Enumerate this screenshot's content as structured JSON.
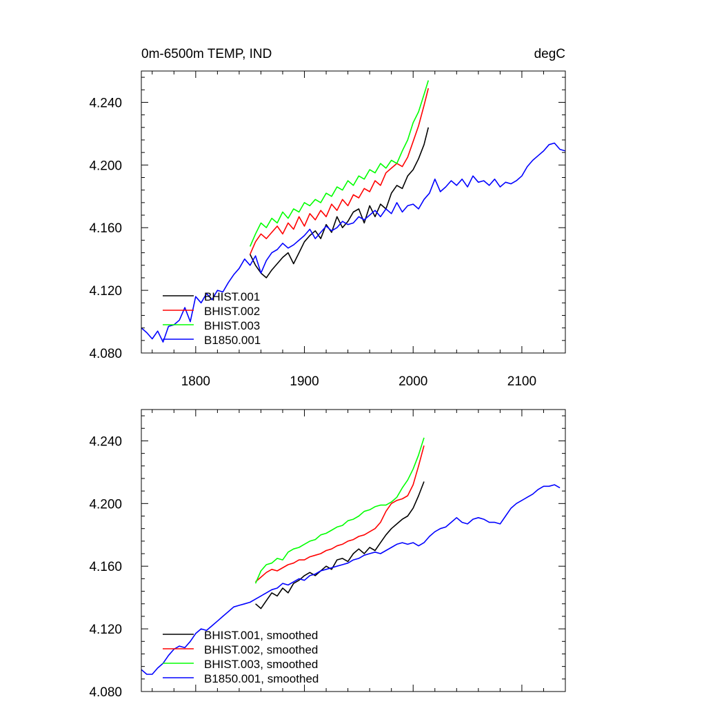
{
  "chart_data": [
    {
      "type": "line",
      "title": "0m-6500m TEMP, IND",
      "units": "degC",
      "xlabel": "",
      "ylabel": "",
      "xlim": [
        1750,
        2140
      ],
      "ylim": [
        4.08,
        4.26
      ],
      "yticks": [
        4.08,
        4.12,
        4.16,
        4.2,
        4.24
      ],
      "ytick_labels": [
        "4.080",
        "4.120",
        "4.160",
        "4.200",
        "4.240"
      ],
      "xticks": [
        1800,
        1900,
        2000,
        2100
      ],
      "xtick_labels": [
        "1800",
        "1900",
        "2000",
        "2100"
      ],
      "grid": false,
      "legend_position": "bottom-left",
      "series": [
        {
          "name": "BHIST.001",
          "color": "#000000",
          "x": [
            1850,
            1855,
            1860,
            1865,
            1870,
            1875,
            1880,
            1885,
            1890,
            1895,
            1900,
            1905,
            1910,
            1915,
            1920,
            1925,
            1930,
            1935,
            1940,
            1945,
            1950,
            1955,
            1960,
            1965,
            1970,
            1975,
            1980,
            1985,
            1990,
            1995,
            2000,
            2005,
            2010,
            2014
          ],
          "values": [
            4.143,
            4.136,
            4.131,
            4.128,
            4.133,
            4.137,
            4.141,
            4.144,
            4.137,
            4.144,
            4.151,
            4.155,
            4.158,
            4.153,
            4.162,
            4.157,
            4.167,
            4.16,
            4.164,
            4.17,
            4.172,
            4.163,
            4.174,
            4.167,
            4.175,
            4.172,
            4.182,
            4.187,
            4.185,
            4.193,
            4.197,
            4.204,
            4.213,
            4.224
          ]
        },
        {
          "name": "BHIST.002",
          "color": "#ff0000",
          "x": [
            1850,
            1855,
            1860,
            1865,
            1870,
            1875,
            1880,
            1885,
            1890,
            1895,
            1900,
            1905,
            1910,
            1915,
            1920,
            1925,
            1930,
            1935,
            1940,
            1945,
            1950,
            1955,
            1960,
            1965,
            1970,
            1975,
            1980,
            1985,
            1990,
            1995,
            2000,
            2005,
            2010,
            2014
          ],
          "values": [
            4.143,
            4.151,
            4.156,
            4.153,
            4.157,
            4.161,
            4.156,
            4.163,
            4.159,
            4.167,
            4.161,
            4.169,
            4.165,
            4.171,
            4.167,
            4.175,
            4.171,
            4.178,
            4.174,
            4.181,
            4.179,
            4.185,
            4.183,
            4.19,
            4.187,
            4.195,
            4.198,
            4.201,
            4.199,
            4.205,
            4.215,
            4.225,
            4.238,
            4.249
          ]
        },
        {
          "name": "BHIST.003",
          "color": "#00ff00",
          "x": [
            1850,
            1855,
            1860,
            1865,
            1870,
            1875,
            1880,
            1885,
            1890,
            1895,
            1900,
            1905,
            1910,
            1915,
            1920,
            1925,
            1930,
            1935,
            1940,
            1945,
            1950,
            1955,
            1960,
            1965,
            1970,
            1975,
            1980,
            1985,
            1990,
            1995,
            2000,
            2005,
            2010,
            2014
          ],
          "values": [
            4.148,
            4.156,
            4.163,
            4.16,
            4.166,
            4.163,
            4.17,
            4.166,
            4.172,
            4.17,
            4.176,
            4.174,
            4.178,
            4.176,
            4.182,
            4.18,
            4.186,
            4.184,
            4.19,
            4.187,
            4.193,
            4.191,
            4.197,
            4.195,
            4.201,
            4.198,
            4.203,
            4.201,
            4.209,
            4.216,
            4.227,
            4.234,
            4.245,
            4.254
          ]
        },
        {
          "name": "B1850.001",
          "color": "#0000ff",
          "x": [
            1750,
            1755,
            1760,
            1765,
            1770,
            1775,
            1780,
            1785,
            1790,
            1795,
            1800,
            1805,
            1810,
            1815,
            1820,
            1825,
            1830,
            1835,
            1840,
            1845,
            1850,
            1855,
            1860,
            1865,
            1870,
            1875,
            1880,
            1885,
            1890,
            1895,
            1900,
            1905,
            1910,
            1915,
            1920,
            1925,
            1930,
            1935,
            1940,
            1945,
            1950,
            1955,
            1960,
            1965,
            1970,
            1975,
            1980,
            1985,
            1990,
            1995,
            2000,
            2005,
            2010,
            2015,
            2020,
            2025,
            2030,
            2035,
            2040,
            2045,
            2050,
            2055,
            2060,
            2065,
            2070,
            2075,
            2080,
            2085,
            2090,
            2095,
            2100,
            2105,
            2110,
            2115,
            2120,
            2125,
            2130,
            2135,
            2140
          ],
          "values": [
            4.096,
            4.093,
            4.089,
            4.094,
            4.087,
            4.097,
            4.098,
            4.101,
            4.109,
            4.1,
            4.116,
            4.112,
            4.118,
            4.114,
            4.12,
            4.119,
            4.125,
            4.13,
            4.134,
            4.14,
            4.136,
            4.142,
            4.131,
            4.139,
            4.144,
            4.146,
            4.15,
            4.147,
            4.149,
            4.152,
            4.155,
            4.159,
            4.153,
            4.157,
            4.161,
            4.158,
            4.16,
            4.164,
            4.162,
            4.163,
            4.167,
            4.165,
            4.168,
            4.171,
            4.167,
            4.172,
            4.169,
            4.176,
            4.17,
            4.174,
            4.175,
            4.172,
            4.178,
            4.182,
            4.191,
            4.183,
            4.186,
            4.19,
            4.187,
            4.191,
            4.186,
            4.193,
            4.189,
            4.19,
            4.187,
            4.191,
            4.186,
            4.189,
            4.188,
            4.19,
            4.193,
            4.199,
            4.203,
            4.206,
            4.209,
            4.213,
            4.214,
            4.21,
            4.209
          ]
        }
      ]
    },
    {
      "type": "line",
      "title": "",
      "units": "",
      "xlabel": "",
      "ylabel": "",
      "xlim": [
        1750,
        2140
      ],
      "ylim": [
        4.08,
        4.26
      ],
      "yticks": [
        4.08,
        4.12,
        4.16,
        4.2,
        4.24
      ],
      "ytick_labels": [
        "4.080",
        "4.120",
        "4.160",
        "4.200",
        "4.240"
      ],
      "xticks": [
        1800,
        1900,
        2000,
        2100
      ],
      "xtick_labels": [],
      "grid": false,
      "legend_position": "bottom-left",
      "series": [
        {
          "name": "BHIST.001, smoothed",
          "color": "#000000",
          "x": [
            1855,
            1860,
            1865,
            1870,
            1875,
            1880,
            1885,
            1890,
            1895,
            1900,
            1905,
            1910,
            1915,
            1920,
            1925,
            1930,
            1935,
            1940,
            1945,
            1950,
            1955,
            1960,
            1965,
            1970,
            1975,
            1980,
            1985,
            1990,
            1995,
            2000,
            2005,
            2010
          ],
          "values": [
            4.136,
            4.133,
            4.138,
            4.143,
            4.141,
            4.146,
            4.143,
            4.149,
            4.151,
            4.154,
            4.156,
            4.154,
            4.157,
            4.16,
            4.158,
            4.164,
            4.165,
            4.163,
            4.168,
            4.171,
            4.168,
            4.172,
            4.17,
            4.175,
            4.18,
            4.184,
            4.187,
            4.19,
            4.192,
            4.197,
            4.205,
            4.214
          ]
        },
        {
          "name": "BHIST.002, smoothed",
          "color": "#ff0000",
          "x": [
            1855,
            1860,
            1865,
            1870,
            1875,
            1880,
            1885,
            1890,
            1895,
            1900,
            1905,
            1910,
            1915,
            1920,
            1925,
            1930,
            1935,
            1940,
            1945,
            1950,
            1955,
            1960,
            1965,
            1970,
            1975,
            1980,
            1985,
            1990,
            1995,
            2000,
            2005,
            2010
          ],
          "values": [
            4.15,
            4.153,
            4.156,
            4.158,
            4.157,
            4.159,
            4.161,
            4.162,
            4.164,
            4.164,
            4.166,
            4.167,
            4.168,
            4.17,
            4.171,
            4.173,
            4.174,
            4.176,
            4.177,
            4.179,
            4.18,
            4.182,
            4.184,
            4.188,
            4.195,
            4.2,
            4.202,
            4.203,
            4.205,
            4.212,
            4.224,
            4.237
          ]
        },
        {
          "name": "BHIST.003, smoothed",
          "color": "#00ff00",
          "x": [
            1855,
            1860,
            1865,
            1870,
            1875,
            1880,
            1885,
            1890,
            1895,
            1900,
            1905,
            1910,
            1915,
            1920,
            1925,
            1930,
            1935,
            1940,
            1945,
            1950,
            1955,
            1960,
            1965,
            1970,
            1975,
            1980,
            1985,
            1990,
            1995,
            2000,
            2005,
            2010
          ],
          "values": [
            4.149,
            4.157,
            4.161,
            4.162,
            4.165,
            4.164,
            4.169,
            4.171,
            4.172,
            4.174,
            4.176,
            4.177,
            4.18,
            4.181,
            4.183,
            4.185,
            4.186,
            4.189,
            4.19,
            4.192,
            4.195,
            4.196,
            4.198,
            4.199,
            4.199,
            4.201,
            4.204,
            4.21,
            4.215,
            4.222,
            4.231,
            4.242
          ]
        },
        {
          "name": "B1850.001, smoothed",
          "color": "#0000ff",
          "x": [
            1750,
            1755,
            1760,
            1765,
            1770,
            1775,
            1780,
            1785,
            1790,
            1795,
            1800,
            1805,
            1810,
            1815,
            1820,
            1825,
            1830,
            1835,
            1840,
            1845,
            1850,
            1855,
            1860,
            1865,
            1870,
            1875,
            1880,
            1885,
            1890,
            1895,
            1900,
            1905,
            1910,
            1915,
            1920,
            1925,
            1930,
            1935,
            1940,
            1945,
            1950,
            1955,
            1960,
            1965,
            1970,
            1975,
            1980,
            1985,
            1990,
            1995,
            2000,
            2005,
            2010,
            2015,
            2020,
            2025,
            2030,
            2035,
            2040,
            2045,
            2050,
            2055,
            2060,
            2065,
            2070,
            2075,
            2080,
            2085,
            2090,
            2095,
            2100,
            2105,
            2110,
            2115,
            2120,
            2125,
            2130,
            2135
          ],
          "values": [
            4.094,
            4.091,
            4.091,
            4.095,
            4.098,
            4.103,
            4.107,
            4.109,
            4.108,
            4.112,
            4.117,
            4.12,
            4.119,
            4.122,
            4.125,
            4.128,
            4.131,
            4.134,
            4.135,
            4.136,
            4.137,
            4.139,
            4.141,
            4.143,
            4.145,
            4.146,
            4.149,
            4.148,
            4.15,
            4.152,
            4.151,
            4.154,
            4.155,
            4.157,
            4.158,
            4.159,
            4.16,
            4.161,
            4.162,
            4.164,
            4.165,
            4.167,
            4.168,
            4.169,
            4.168,
            4.17,
            4.172,
            4.174,
            4.175,
            4.174,
            4.175,
            4.173,
            4.175,
            4.179,
            4.182,
            4.184,
            4.185,
            4.188,
            4.191,
            4.188,
            4.187,
            4.19,
            4.191,
            4.19,
            4.188,
            4.188,
            4.187,
            4.192,
            4.197,
            4.2,
            4.202,
            4.204,
            4.206,
            4.209,
            4.211,
            4.211,
            4.212,
            4.21
          ]
        }
      ]
    }
  ]
}
